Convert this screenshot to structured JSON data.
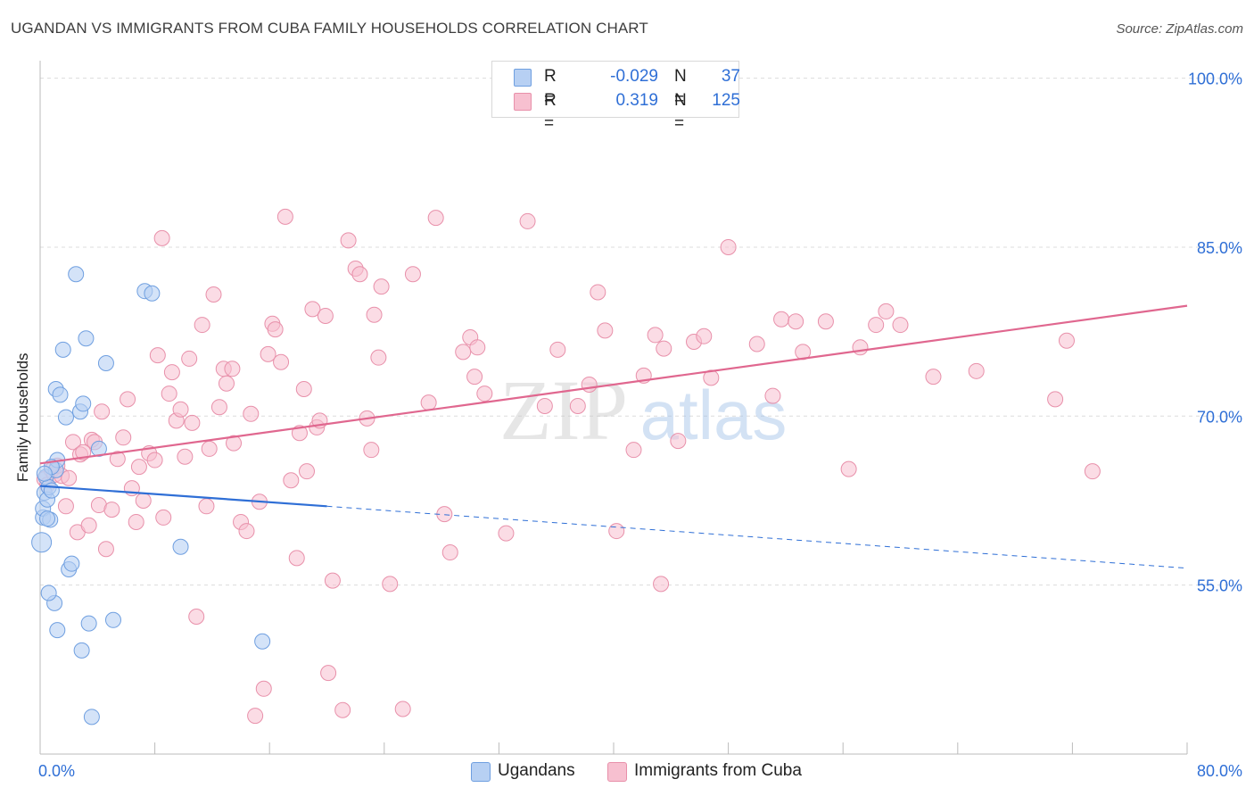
{
  "header": {
    "title": "UGANDAN VS IMMIGRANTS FROM CUBA FAMILY HOUSEHOLDS CORRELATION CHART",
    "source": "Source: ZipAtlas.com"
  },
  "legend_top": {
    "rows": [
      {
        "r_label": "R =",
        "r_value": "-0.029",
        "n_label": "N =",
        "n_value": "37"
      },
      {
        "r_label": "R =",
        "r_value": "0.319",
        "n_label": "N =",
        "n_value": "125"
      }
    ]
  },
  "legend_bottom": {
    "ugandans": "Ugandans",
    "cuba": "Immigrants from Cuba"
  },
  "colors": {
    "blue_fill": "#b7d0f3",
    "blue_stroke": "#6f9fe0",
    "blue_line": "#2f6fd6",
    "pink_fill": "#f7c0d0",
    "pink_stroke": "#e890aa",
    "pink_line": "#e0678f",
    "axis_text": "#2f6fd6",
    "grid": "#dcdcdc"
  },
  "watermark": {
    "zip": "ZIP",
    "atlas": "atlas"
  },
  "chart_data": {
    "type": "scatter",
    "title": "UGANDAN VS IMMIGRANTS FROM CUBA FAMILY HOUSEHOLDS CORRELATION CHART",
    "xlabel": "",
    "ylabel": "Family Households",
    "xlim": [
      0,
      80
    ],
    "ylim": [
      40,
      101
    ],
    "x_tick_labels": [
      "0.0%",
      "80.0%"
    ],
    "y_ticks": [
      55,
      70,
      85,
      100
    ],
    "y_tick_labels": [
      "55.0%",
      "70.0%",
      "85.0%",
      "100.0%"
    ],
    "grid": true,
    "series": [
      {
        "name": "Ugandans",
        "r": -0.029,
        "n": 37,
        "trend": {
          "x0": 0,
          "y0": 63.8,
          "x1": 20,
          "y1": 62.0,
          "dashed_to_x": 80,
          "dashed_to_y": 56.5
        },
        "points": [
          [
            0.1,
            58.8
          ],
          [
            0.2,
            61.0
          ],
          [
            0.2,
            61.8
          ],
          [
            0.3,
            63.2
          ],
          [
            0.4,
            64.6
          ],
          [
            0.5,
            62.6
          ],
          [
            0.6,
            63.7
          ],
          [
            0.7,
            60.8
          ],
          [
            0.8,
            63.4
          ],
          [
            1.0,
            53.4
          ],
          [
            1.1,
            65.2
          ],
          [
            1.2,
            66.1
          ],
          [
            1.1,
            72.4
          ],
          [
            1.4,
            71.9
          ],
          [
            1.6,
            75.9
          ],
          [
            1.8,
            69.9
          ],
          [
            2.0,
            56.4
          ],
          [
            2.2,
            56.9
          ],
          [
            2.5,
            82.6
          ],
          [
            2.8,
            70.4
          ],
          [
            3.0,
            71.1
          ],
          [
            3.2,
            76.9
          ],
          [
            3.4,
            51.6
          ],
          [
            3.6,
            43.3
          ],
          [
            4.1,
            67.1
          ],
          [
            4.6,
            74.7
          ],
          [
            5.1,
            51.9
          ],
          [
            7.3,
            81.1
          ],
          [
            7.8,
            80.9
          ],
          [
            9.8,
            58.4
          ],
          [
            15.5,
            50.0
          ],
          [
            1.2,
            51.0
          ],
          [
            2.9,
            49.2
          ],
          [
            0.6,
            54.3
          ],
          [
            0.8,
            65.5
          ],
          [
            0.3,
            64.9
          ],
          [
            0.5,
            60.9
          ]
        ]
      },
      {
        "name": "Immigrants from Cuba",
        "r": 0.319,
        "n": 125,
        "trend": {
          "x0": 0,
          "y0": 65.8,
          "x1": 80,
          "y1": 79.8
        },
        "points": [
          [
            0.3,
            64.4
          ],
          [
            0.5,
            63.9
          ],
          [
            0.8,
            65.2
          ],
          [
            1.0,
            64.8
          ],
          [
            1.2,
            65.6
          ],
          [
            1.5,
            64.7
          ],
          [
            1.8,
            62.0
          ],
          [
            2.0,
            64.5
          ],
          [
            2.3,
            67.7
          ],
          [
            2.6,
            59.7
          ],
          [
            2.8,
            66.6
          ],
          [
            3.0,
            66.8
          ],
          [
            3.4,
            60.3
          ],
          [
            3.6,
            67.9
          ],
          [
            3.8,
            67.7
          ],
          [
            4.1,
            62.1
          ],
          [
            4.3,
            70.4
          ],
          [
            4.6,
            58.2
          ],
          [
            5.0,
            61.7
          ],
          [
            5.4,
            66.2
          ],
          [
            5.8,
            68.1
          ],
          [
            6.1,
            71.5
          ],
          [
            6.4,
            63.6
          ],
          [
            6.7,
            60.6
          ],
          [
            6.9,
            65.5
          ],
          [
            7.2,
            62.5
          ],
          [
            7.6,
            66.7
          ],
          [
            8.0,
            66.1
          ],
          [
            8.2,
            75.4
          ],
          [
            8.5,
            85.8
          ],
          [
            8.6,
            61.0
          ],
          [
            9.0,
            72.0
          ],
          [
            9.2,
            73.9
          ],
          [
            9.5,
            69.6
          ],
          [
            9.8,
            70.6
          ],
          [
            10.1,
            66.4
          ],
          [
            10.4,
            75.1
          ],
          [
            10.6,
            69.4
          ],
          [
            10.9,
            52.2
          ],
          [
            11.3,
            78.1
          ],
          [
            11.6,
            62.0
          ],
          [
            11.8,
            67.1
          ],
          [
            12.1,
            80.8
          ],
          [
            12.5,
            70.8
          ],
          [
            12.8,
            74.2
          ],
          [
            13.0,
            72.9
          ],
          [
            13.4,
            74.2
          ],
          [
            13.5,
            67.6
          ],
          [
            14.0,
            60.6
          ],
          [
            14.4,
            59.8
          ],
          [
            14.7,
            70.2
          ],
          [
            15.0,
            43.4
          ],
          [
            15.3,
            62.4
          ],
          [
            15.6,
            45.8
          ],
          [
            15.9,
            75.5
          ],
          [
            16.2,
            78.2
          ],
          [
            16.4,
            77.7
          ],
          [
            16.8,
            74.8
          ],
          [
            17.1,
            87.7
          ],
          [
            17.5,
            64.3
          ],
          [
            17.9,
            57.4
          ],
          [
            18.1,
            68.5
          ],
          [
            18.4,
            72.4
          ],
          [
            18.6,
            65.1
          ],
          [
            19.0,
            79.5
          ],
          [
            19.3,
            69.0
          ],
          [
            19.5,
            69.6
          ],
          [
            19.9,
            78.9
          ],
          [
            20.1,
            47.2
          ],
          [
            20.4,
            55.4
          ],
          [
            21.1,
            43.9
          ],
          [
            21.5,
            85.6
          ],
          [
            22.0,
            83.1
          ],
          [
            22.3,
            82.6
          ],
          [
            22.8,
            69.8
          ],
          [
            23.1,
            67.0
          ],
          [
            23.3,
            79.0
          ],
          [
            23.6,
            75.2
          ],
          [
            23.8,
            81.5
          ],
          [
            24.4,
            55.1
          ],
          [
            25.3,
            44.0
          ],
          [
            26.0,
            82.6
          ],
          [
            27.1,
            71.2
          ],
          [
            27.6,
            87.6
          ],
          [
            28.2,
            61.3
          ],
          [
            28.6,
            57.9
          ],
          [
            29.5,
            75.7
          ],
          [
            30.0,
            77.0
          ],
          [
            30.3,
            73.5
          ],
          [
            30.5,
            76.1
          ],
          [
            31.0,
            72.0
          ],
          [
            32.5,
            59.6
          ],
          [
            34.0,
            87.3
          ],
          [
            35.2,
            70.9
          ],
          [
            36.1,
            75.9
          ],
          [
            37.5,
            70.9
          ],
          [
            38.3,
            72.8
          ],
          [
            38.9,
            81.0
          ],
          [
            39.4,
            77.6
          ],
          [
            40.2,
            59.8
          ],
          [
            41.4,
            67.0
          ],
          [
            42.1,
            73.6
          ],
          [
            42.9,
            77.2
          ],
          [
            43.5,
            76.0
          ],
          [
            43.3,
            55.1
          ],
          [
            44.5,
            67.8
          ],
          [
            45.6,
            76.6
          ],
          [
            46.3,
            77.1
          ],
          [
            46.8,
            73.4
          ],
          [
            48.0,
            85.0
          ],
          [
            50.0,
            76.4
          ],
          [
            51.1,
            71.8
          ],
          [
            51.7,
            78.6
          ],
          [
            52.7,
            78.4
          ],
          [
            53.2,
            75.7
          ],
          [
            54.8,
            78.4
          ],
          [
            56.4,
            65.3
          ],
          [
            57.2,
            76.1
          ],
          [
            58.3,
            78.1
          ],
          [
            59.0,
            79.3
          ],
          [
            60.0,
            78.1
          ],
          [
            62.3,
            73.5
          ],
          [
            65.3,
            74.0
          ],
          [
            70.8,
            71.5
          ],
          [
            71.6,
            76.7
          ],
          [
            73.4,
            65.1
          ]
        ]
      }
    ]
  }
}
